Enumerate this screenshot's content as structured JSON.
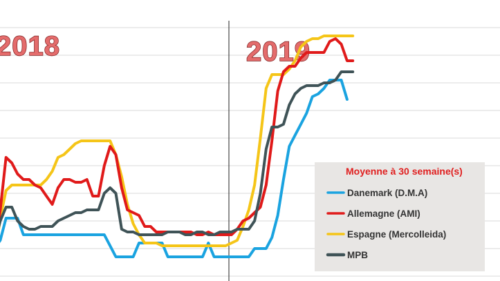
{
  "chart_data": {
    "type": "line",
    "title": "",
    "xlabel": "",
    "ylabel": "",
    "ylim": [
      0,
      9
    ],
    "grid": true,
    "year_labels": [
      "2018",
      "2019"
    ],
    "x_count": 68,
    "year_split_index": 39,
    "legend": {
      "title": "Moyenne à  30 semaine(s)",
      "placement": "bottom-right"
    },
    "series": [
      {
        "name": "Danemark (D.M.A)",
        "color": "#1aa3e0",
        "values": [
          1.0,
          1.3,
          2.1,
          2.1,
          2.1,
          1.5,
          1.5,
          1.5,
          1.5,
          1.5,
          1.5,
          1.5,
          1.5,
          1.5,
          1.5,
          1.5,
          1.5,
          1.5,
          1.5,
          1.5,
          1.1,
          0.7,
          0.7,
          0.7,
          0.7,
          1.2,
          1.2,
          1.2,
          1.2,
          1.2,
          0.7,
          0.7,
          0.7,
          0.7,
          0.7,
          0.7,
          0.7,
          1.2,
          0.7,
          0.7,
          0.7,
          0.7,
          0.7,
          0.7,
          0.7,
          1.0,
          1.0,
          1.0,
          1.4,
          2.2,
          3.5,
          4.7,
          5.1,
          5.5,
          5.9,
          6.5,
          6.6,
          6.8,
          7.1,
          7.1,
          7.1,
          6.4,
          null,
          null,
          null,
          null,
          null,
          null
        ]
      },
      {
        "name": "Allemagne (AMI)",
        "color": "#e01a1a",
        "values": [
          1.0,
          2.4,
          4.3,
          4.1,
          3.7,
          3.5,
          3.5,
          3.3,
          3.2,
          2.9,
          2.6,
          3.2,
          3.5,
          3.5,
          3.4,
          3.4,
          3.5,
          2.9,
          2.9,
          4.0,
          4.7,
          4.4,
          3.2,
          2.4,
          2.3,
          2.2,
          1.8,
          1.8,
          1.6,
          1.6,
          1.6,
          1.6,
          1.6,
          1.6,
          1.6,
          1.5,
          1.5,
          1.6,
          1.5,
          1.5,
          1.5,
          1.5,
          1.7,
          2.0,
          2.1,
          2.3,
          2.5,
          3.3,
          4.9,
          6.7,
          7.4,
          7.6,
          7.6,
          7.9,
          8.1,
          8.1,
          8.1,
          8.1,
          8.5,
          8.6,
          8.4,
          7.8,
          7.8,
          null,
          null,
          null,
          null,
          null
        ]
      },
      {
        "name": "Espagne (Mercolleida)",
        "color": "#f5c518",
        "values": [
          0.6,
          2.1,
          3.1,
          3.3,
          3.3,
          3.3,
          3.3,
          3.3,
          3.3,
          3.5,
          3.8,
          4.3,
          4.4,
          4.6,
          4.8,
          4.9,
          4.9,
          4.9,
          4.9,
          4.9,
          4.9,
          4.4,
          3.6,
          2.6,
          1.9,
          1.5,
          1.2,
          1.2,
          1.2,
          1.1,
          1.1,
          1.1,
          1.1,
          1.1,
          1.1,
          1.1,
          1.1,
          1.1,
          1.1,
          1.1,
          1.1,
          1.2,
          1.3,
          1.8,
          2.4,
          3.3,
          5.0,
          6.8,
          7.3,
          7.3,
          7.3,
          7.5,
          7.8,
          8.3,
          8.5,
          8.6,
          8.6,
          8.7,
          8.7,
          8.7,
          8.7,
          8.7,
          8.7,
          null,
          null,
          null,
          null,
          null
        ]
      },
      {
        "name": "MPB",
        "color": "#3f5357",
        "values": [
          1.2,
          2.0,
          2.5,
          2.5,
          2.0,
          1.8,
          1.7,
          1.7,
          1.8,
          1.8,
          1.8,
          2.0,
          2.1,
          2.2,
          2.3,
          2.3,
          2.4,
          2.4,
          2.4,
          3.0,
          3.2,
          3.0,
          1.7,
          1.6,
          1.6,
          1.5,
          1.5,
          1.5,
          1.5,
          1.5,
          1.6,
          1.6,
          1.6,
          1.5,
          1.5,
          1.6,
          1.6,
          1.5,
          1.5,
          1.6,
          1.6,
          1.6,
          1.7,
          1.7,
          1.7,
          2.0,
          3.0,
          4.6,
          5.4,
          5.4,
          5.5,
          6.2,
          6.6,
          6.8,
          6.9,
          6.9,
          6.9,
          7.0,
          7.0,
          7.1,
          7.4,
          7.4,
          7.4,
          null,
          null,
          null,
          null,
          null
        ]
      }
    ]
  }
}
